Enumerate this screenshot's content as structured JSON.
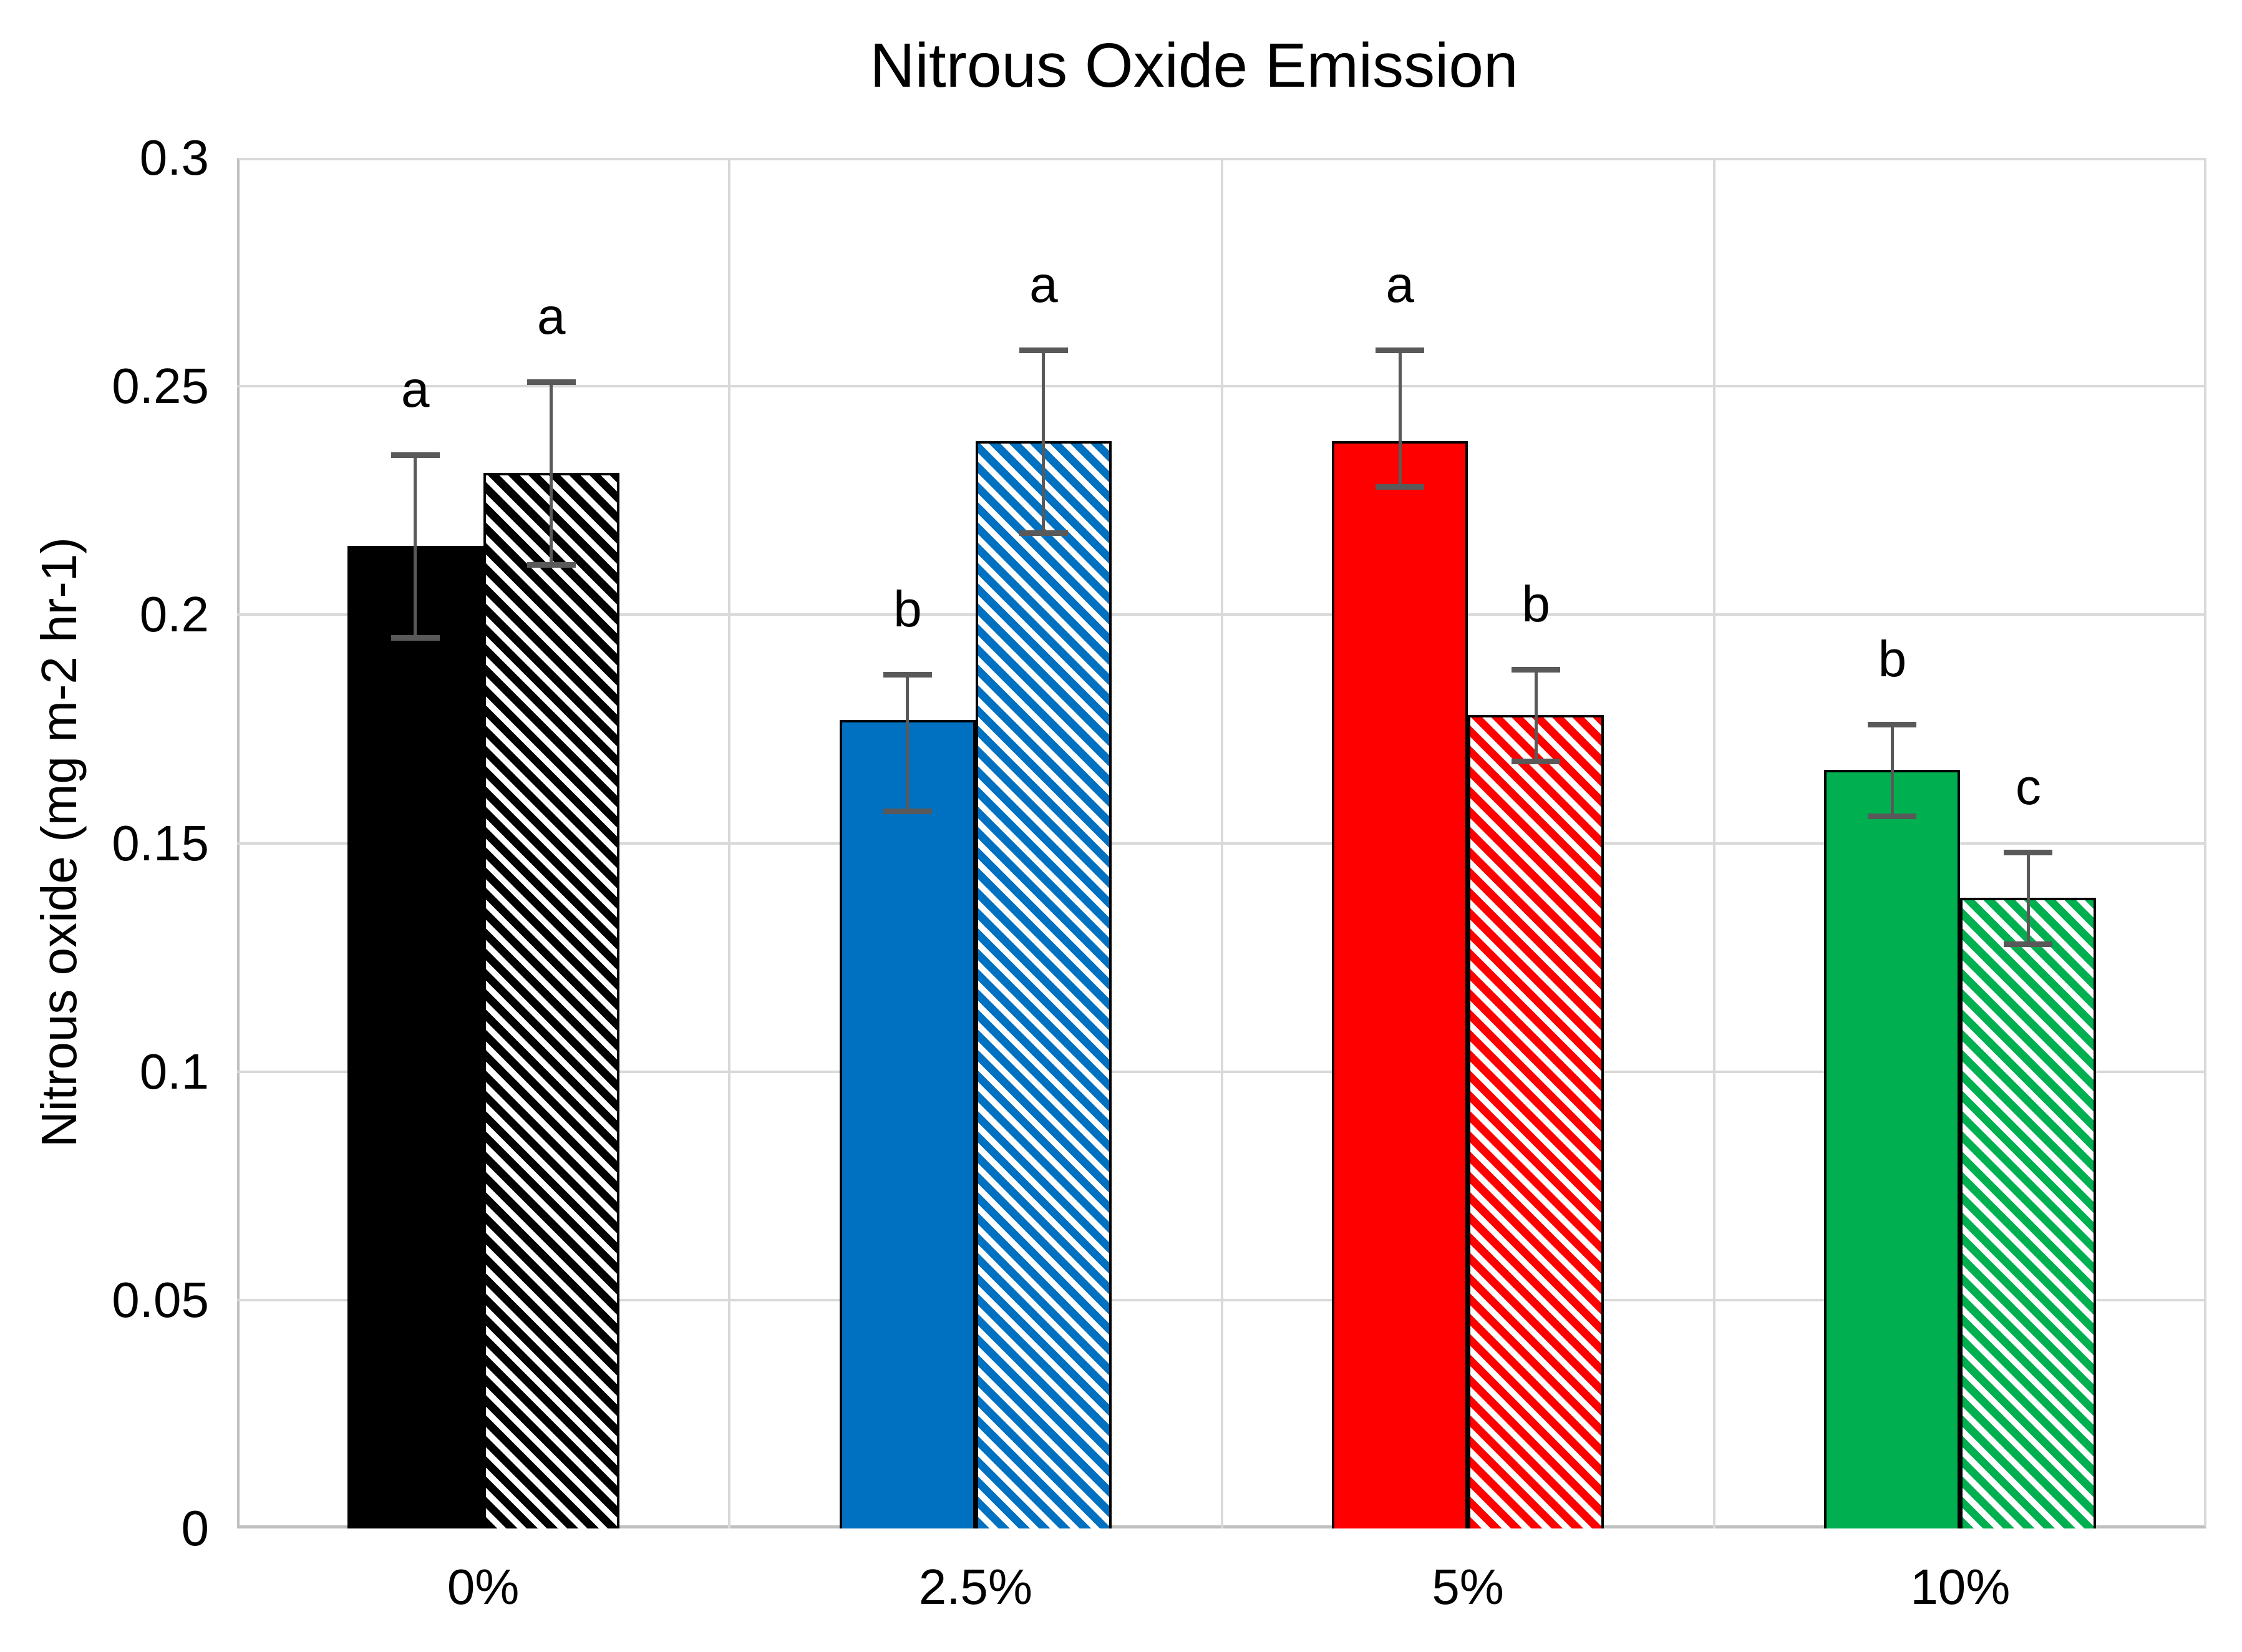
{
  "chart_data": {
    "type": "bar",
    "title": "Nitrous Oxide Emission",
    "xlabel": "",
    "ylabel": "Nitrous oxide (mg m-2 hr-1)",
    "categories": [
      "0%",
      "2.5%",
      "5%",
      "10%"
    ],
    "ylim": [
      0,
      0.3
    ],
    "ytick_step": 0.05,
    "yticks": [
      {
        "label": "0",
        "value": 0
      },
      {
        "label": "0.05",
        "value": 0.05
      },
      {
        "label": "0.1",
        "value": 0.1
      },
      {
        "label": "0.15",
        "value": 0.15
      },
      {
        "label": "0.2",
        "value": 0.2
      },
      {
        "label": "0.25",
        "value": 0.25
      },
      {
        "label": "0.3",
        "value": 0.3
      }
    ],
    "grid": true,
    "legend_position": "none",
    "series": [
      {
        "name": "solid-fill",
        "fill_style": "solid",
        "colors": [
          "#000000",
          "#0070C0",
          "#FF0000",
          "#00B050"
        ],
        "values": [
          0.215,
          0.177,
          0.238,
          0.166
        ],
        "error_up": [
          0.02,
          0.01,
          0.02,
          0.01
        ],
        "error_down": [
          0.02,
          0.02,
          0.01,
          0.01
        ],
        "letters": [
          "a",
          "b",
          "a",
          "b"
        ]
      },
      {
        "name": "hatched-fill",
        "fill_style": "diagonal-hatch",
        "colors": [
          "#000000",
          "#0070C0",
          "#FF0000",
          "#00B050"
        ],
        "values": [
          0.231,
          0.238,
          0.178,
          0.138
        ],
        "error_up": [
          0.02,
          0.02,
          0.01,
          0.01
        ],
        "error_down": [
          0.02,
          0.02,
          0.01,
          0.01
        ],
        "letters": [
          "a",
          "a",
          "b",
          "c"
        ]
      }
    ],
    "error_bar_color": "#595959",
    "gridline_color": "#D9D9D9",
    "axis_line_color": "#BFBFBF",
    "plot_background": "#FFFFFF"
  }
}
